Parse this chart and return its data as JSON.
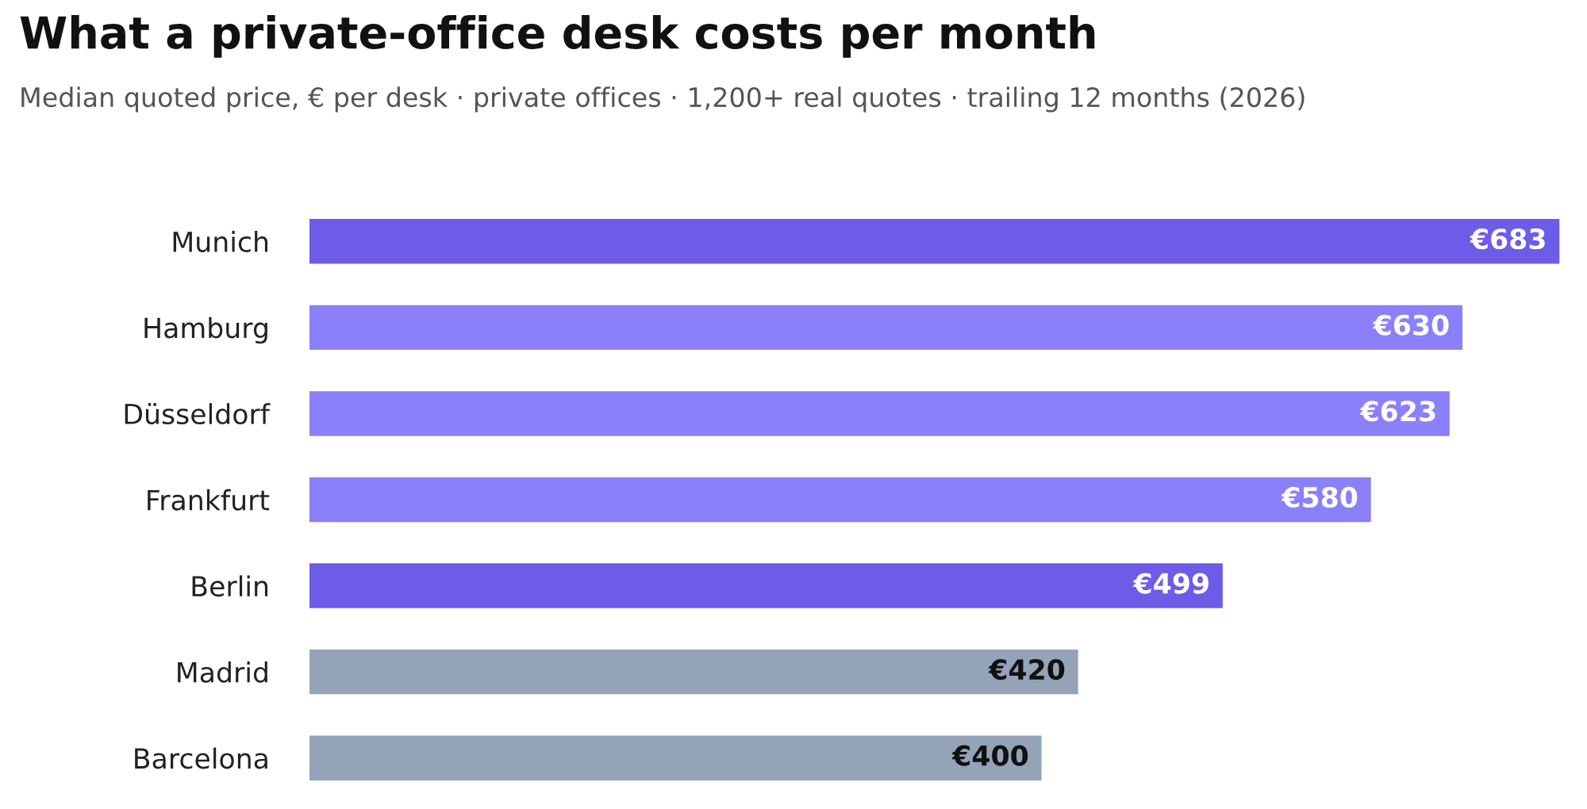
{
  "chart_data": {
    "type": "bar",
    "orientation": "horizontal",
    "title": "What a private-office desk costs per month",
    "subtitle": "Median quoted price, € per desk · private offices · 1,200+ real quotes · trailing 12 months (2026)",
    "categories": [
      "Munich",
      "Hamburg",
      "Düsseldorf",
      "Frankfurt",
      "Berlin",
      "Madrid",
      "Barcelona"
    ],
    "values": [
      683,
      630,
      623,
      580,
      499,
      420,
      400
    ],
    "colors": [
      "#6c5ce7",
      "#8b80f9",
      "#8b80f9",
      "#8b80f9",
      "#6c5ce7",
      "#94a3b8",
      "#94a3b8"
    ],
    "value_labels": [
      "€683",
      "€630",
      "€623",
      "€580",
      "€499",
      "€420",
      "€400"
    ],
    "grid": false,
    "legend": false
  }
}
